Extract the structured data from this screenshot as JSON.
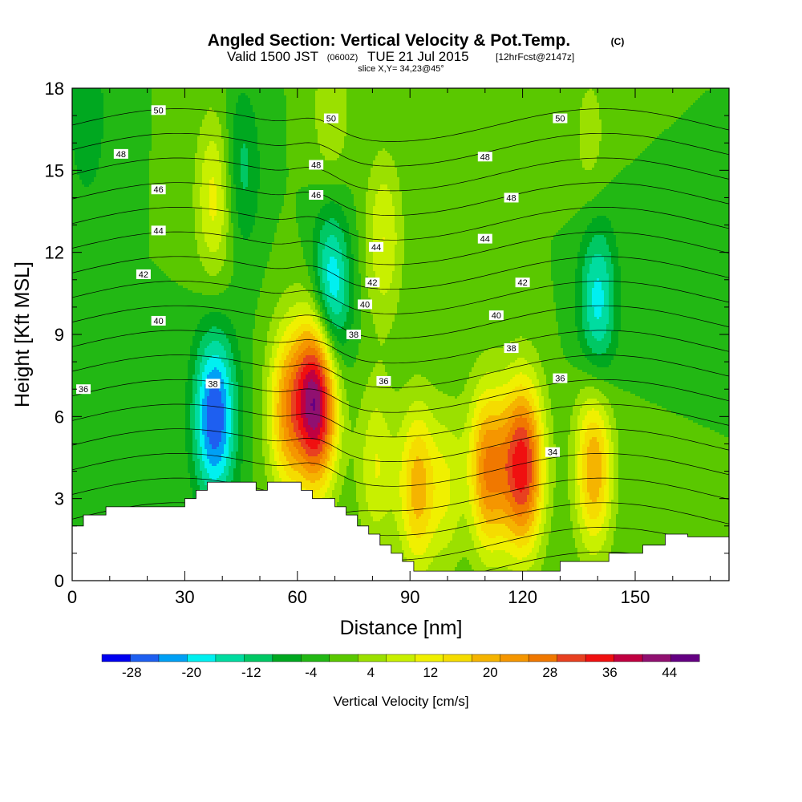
{
  "header": {
    "title": "Angled Section: Vertical Velocity & Pot.Temp.",
    "copyright": "(C)",
    "valid_prefix": "Valid 1500 JST",
    "valid_z": "(0600Z)",
    "valid_date": "TUE 21 Jul 2015",
    "valid_fcst": "[12hrFcst@2147z]",
    "slice": "slice X,Y= 34,23@45°"
  },
  "chart_data": {
    "type": "heatmap",
    "title": "Angled Section: Vertical Velocity & Pot.Temp.",
    "xlabel": "Distance [nm]",
    "ylabel": "Height [Kft MSL]",
    "xlim": [
      0,
      175
    ],
    "ylim": [
      0,
      18
    ],
    "x_ticks": [
      0,
      30,
      60,
      90,
      120,
      150
    ],
    "y_ticks": [
      0,
      3,
      6,
      9,
      12,
      15,
      18
    ],
    "grid": false,
    "colorbar": {
      "label": "Vertical Velocity [cm/s]",
      "boundaries": [
        -32,
        -28,
        -24,
        -20,
        -16,
        -12,
        -8,
        -4,
        0,
        4,
        8,
        12,
        16,
        20,
        24,
        28,
        32,
        36,
        40,
        44,
        48
      ],
      "tick_values": [
        -28,
        -20,
        -12,
        -4,
        4,
        12,
        20,
        28,
        36,
        44
      ],
      "colors": [
        "#0000f0",
        "#1e5ff0",
        "#00a0f5",
        "#00f0f0",
        "#00dca0",
        "#00c864",
        "#00a820",
        "#22b814",
        "#5ac800",
        "#9be000",
        "#c8f000",
        "#f0f000",
        "#f5dc00",
        "#f5b400",
        "#f59600",
        "#f07800",
        "#e84020",
        "#f01010",
        "#c00040",
        "#901070",
        "#640082"
      ]
    },
    "background_value": 0,
    "updrafts": [
      {
        "x": 65,
        "y": 6.6,
        "peak": 48
      },
      {
        "x": 57,
        "y": 6.2,
        "peak": 22
      },
      {
        "x": 120,
        "y": 4.2,
        "peak": 38
      },
      {
        "x": 110,
        "y": 4.0,
        "peak": 30
      },
      {
        "x": 101,
        "y": 3.4,
        "peak": 14
      },
      {
        "x": 92,
        "y": 3.4,
        "peak": 22
      },
      {
        "x": 81,
        "y": 4.2,
        "peak": 12
      },
      {
        "x": 139,
        "y": 4.2,
        "peak": 24
      },
      {
        "x": 38,
        "y": 14.0,
        "peak": 14
      },
      {
        "x": 83,
        "y": 12.5,
        "peak": 12
      },
      {
        "x": 69,
        "y": 17.0,
        "peak": 8
      },
      {
        "x": 138,
        "y": 16.0,
        "peak": 6
      }
    ],
    "downdrafts": [
      {
        "x": 38,
        "y": 6.0,
        "peak": -28
      },
      {
        "x": 69,
        "y": 10.5,
        "peak": -22
      },
      {
        "x": 140,
        "y": 10.2,
        "peak": -18
      },
      {
        "x": 45,
        "y": 15.0,
        "peak": -10
      },
      {
        "x": 105,
        "y": 3.5,
        "peak": -10
      },
      {
        "x": 4,
        "y": 17.0,
        "peak": -8
      }
    ],
    "terrain": [
      [
        0,
        2.0
      ],
      [
        3,
        2.0
      ],
      [
        3,
        2.4
      ],
      [
        9,
        2.4
      ],
      [
        9,
        2.7
      ],
      [
        30,
        2.7
      ],
      [
        30,
        3.0
      ],
      [
        33,
        3.0
      ],
      [
        33,
        3.3
      ],
      [
        36,
        3.3
      ],
      [
        36,
        3.6
      ],
      [
        49,
        3.6
      ],
      [
        49,
        3.3
      ],
      [
        52,
        3.3
      ],
      [
        52,
        3.6
      ],
      [
        61,
        3.6
      ],
      [
        61,
        3.3
      ],
      [
        64,
        3.3
      ],
      [
        64,
        3.0
      ],
      [
        70,
        3.0
      ],
      [
        70,
        2.7
      ],
      [
        73,
        2.7
      ],
      [
        73,
        2.4
      ],
      [
        76,
        2.4
      ],
      [
        76,
        2.0
      ],
      [
        79,
        2.0
      ],
      [
        79,
        1.7
      ],
      [
        82,
        1.7
      ],
      [
        82,
        1.3
      ],
      [
        85,
        1.3
      ],
      [
        85,
        1.0
      ],
      [
        88,
        1.0
      ],
      [
        88,
        0.7
      ],
      [
        91,
        0.7
      ],
      [
        91,
        0.35
      ],
      [
        130,
        0.35
      ],
      [
        130,
        0.7
      ],
      [
        143,
        0.7
      ],
      [
        143,
        1.0
      ],
      [
        152,
        1.0
      ],
      [
        152,
        1.3
      ],
      [
        158,
        1.3
      ],
      [
        158,
        1.7
      ],
      [
        164,
        1.7
      ],
      [
        164,
        1.6
      ],
      [
        175,
        1.6
      ]
    ],
    "theta_contours": {
      "interval": 1,
      "range": [
        31,
        52
      ],
      "labeled_levels": [
        34,
        36,
        38,
        40,
        42,
        44,
        46,
        48,
        50
      ]
    },
    "contour_labels": [
      {
        "text": "50",
        "x": 23,
        "y": 17.2
      },
      {
        "text": "48",
        "x": 13,
        "y": 15.6
      },
      {
        "text": "46",
        "x": 23,
        "y": 14.3
      },
      {
        "text": "44",
        "x": 23,
        "y": 12.8
      },
      {
        "text": "42",
        "x": 19,
        "y": 11.2
      },
      {
        "text": "40",
        "x": 23,
        "y": 9.5
      },
      {
        "text": "36",
        "x": 3,
        "y": 7.0
      },
      {
        "text": "38",
        "x": 37.5,
        "y": 7.2
      },
      {
        "text": "50",
        "x": 69,
        "y": 16.9
      },
      {
        "text": "48",
        "x": 65,
        "y": 15.2
      },
      {
        "text": "46",
        "x": 65,
        "y": 14.1
      },
      {
        "text": "44",
        "x": 81,
        "y": 12.2
      },
      {
        "text": "42",
        "x": 80,
        "y": 10.9
      },
      {
        "text": "40",
        "x": 78,
        "y": 10.1
      },
      {
        "text": "38",
        "x": 75,
        "y": 9.0
      },
      {
        "text": "36",
        "x": 83,
        "y": 7.3
      },
      {
        "text": "50",
        "x": 130,
        "y": 16.9
      },
      {
        "text": "48",
        "x": 110,
        "y": 15.5
      },
      {
        "text": "48",
        "x": 117,
        "y": 14.0
      },
      {
        "text": "44",
        "x": 110,
        "y": 12.5
      },
      {
        "text": "42",
        "x": 120,
        "y": 10.9
      },
      {
        "text": "40",
        "x": 113,
        "y": 9.7
      },
      {
        "text": "38",
        "x": 117,
        "y": 8.5
      },
      {
        "text": "36",
        "x": 130,
        "y": 7.4
      },
      {
        "text": "34",
        "x": 128,
        "y": 4.7
      }
    ]
  }
}
